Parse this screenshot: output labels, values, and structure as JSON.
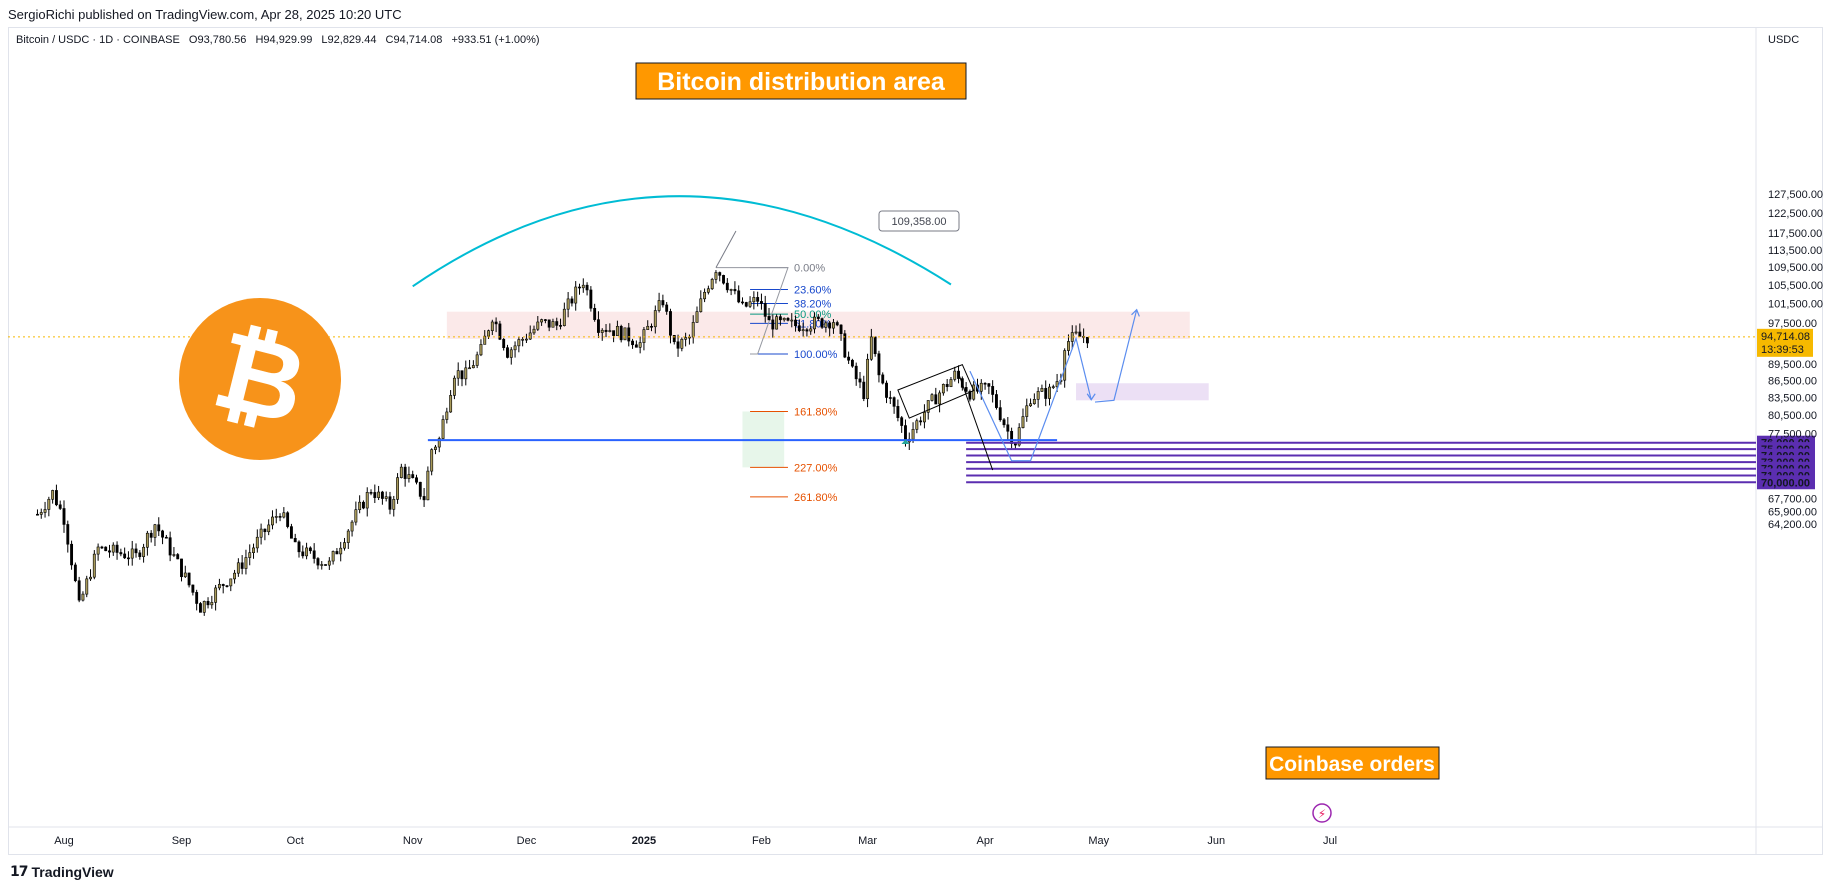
{
  "header": {
    "published": "SergioRichi published on TradingView.com, Apr 28, 2025 10:20 UTC"
  },
  "footer": {
    "brand": "TradingView"
  },
  "chart_data": {
    "type": "candlestick",
    "symbol": "Bitcoin / USDC · 1D · COINBASE",
    "ohlc_text": {
      "open": "O93,780.56",
      "high": "H94,929.99",
      "low": "L92,829.44",
      "close": "C94,714.08",
      "change": "+933.51 (+1.00%)"
    },
    "currency": "USDC",
    "last_price": "94,714.08",
    "last_price_value": 94714.08,
    "countdown": "13:39:53",
    "y_axis": {
      "ticks": [
        {
          "label": "127,500.00",
          "value": 127500
        },
        {
          "label": "122,500.00",
          "value": 122500
        },
        {
          "label": "117,500.00",
          "value": 117500
        },
        {
          "label": "113,500.00",
          "value": 113500
        },
        {
          "label": "109,500.00",
          "value": 109500
        },
        {
          "label": "105,500.00",
          "value": 105500
        },
        {
          "label": "101,500.00",
          "value": 101500
        },
        {
          "label": "97,500.00",
          "value": 97500
        },
        {
          "label": "89,500.00",
          "value": 89500
        },
        {
          "label": "86,500.00",
          "value": 86500
        },
        {
          "label": "83,500.00",
          "value": 83500
        },
        {
          "label": "80,500.00",
          "value": 80500
        },
        {
          "label": "77,500.00",
          "value": 77500
        },
        {
          "label": "67,700.00",
          "value": 67700
        },
        {
          "label": "65,900.00",
          "value": 65900
        },
        {
          "label": "64,200.00",
          "value": 64200
        }
      ],
      "scale": "log"
    },
    "x_axis": {
      "ticks": [
        {
          "label": "Aug",
          "date": "2024-08-01"
        },
        {
          "label": "Sep",
          "date": "2024-09-01"
        },
        {
          "label": "Oct",
          "date": "2024-10-01"
        },
        {
          "label": "Nov",
          "date": "2024-11-01"
        },
        {
          "label": "Dec",
          "date": "2024-12-01"
        },
        {
          "label": "2025",
          "date": "2025-01-01",
          "bold": true
        },
        {
          "label": "Feb",
          "date": "2025-02-01"
        },
        {
          "label": "Mar",
          "date": "2025-03-01"
        },
        {
          "label": "Apr",
          "date": "2025-04-01"
        },
        {
          "label": "May",
          "date": "2025-05-01"
        },
        {
          "label": "Jun",
          "date": "2025-06-01"
        },
        {
          "label": "Jul",
          "date": "2025-07-01"
        }
      ]
    },
    "price_path": [
      [
        "2024-07-25",
        65500
      ],
      [
        "2024-07-29",
        68500
      ],
      [
        "2024-08-01",
        65000
      ],
      [
        "2024-08-05",
        54000
      ],
      [
        "2024-08-10",
        61000
      ],
      [
        "2024-08-20",
        60000
      ],
      [
        "2024-08-25",
        64200
      ],
      [
        "2024-09-06",
        54000
      ],
      [
        "2024-09-16",
        58500
      ],
      [
        "2024-09-27",
        66000
      ],
      [
        "2024-10-01",
        61000
      ],
      [
        "2024-10-10",
        59000
      ],
      [
        "2024-10-21",
        69000
      ],
      [
        "2024-10-26",
        66500
      ],
      [
        "2024-10-29",
        72000
      ],
      [
        "2024-11-04",
        67800
      ],
      [
        "2024-11-06",
        75000
      ],
      [
        "2024-11-08",
        76500
      ],
      [
        "2024-11-12",
        88000
      ],
      [
        "2024-11-15",
        87500
      ],
      [
        "2024-11-19",
        92000
      ],
      [
        "2024-11-22",
        99000
      ],
      [
        "2024-11-26",
        91800
      ],
      [
        "2024-12-05",
        97500
      ],
      [
        "2024-12-09",
        97000
      ],
      [
        "2024-12-16",
        106500
      ],
      [
        "2024-12-20",
        97000
      ],
      [
        "2024-12-26",
        95500
      ],
      [
        "2024-12-31",
        93400
      ],
      [
        "2025-01-06",
        102200
      ],
      [
        "2025-01-09",
        92500
      ],
      [
        "2025-01-13",
        94500
      ],
      [
        "2025-01-17",
        104000
      ],
      [
        "2025-01-20",
        109358
      ],
      [
        "2025-01-24",
        104500
      ],
      [
        "2025-01-27",
        100500
      ],
      [
        "2025-01-31",
        102400
      ],
      [
        "2025-02-03",
        97500
      ],
      [
        "2025-02-10",
        97000
      ],
      [
        "2025-02-20",
        98000
      ],
      [
        "2025-02-25",
        88000
      ],
      [
        "2025-02-28",
        84300
      ],
      [
        "2025-03-02",
        94200
      ],
      [
        "2025-03-04",
        87300
      ],
      [
        "2025-03-10",
        78600
      ],
      [
        "2025-03-11",
        76600
      ],
      [
        "2025-03-18",
        82800
      ],
      [
        "2025-03-24",
        87500
      ],
      [
        "2025-03-28",
        84400
      ],
      [
        "2025-04-02",
        85000
      ],
      [
        "2025-04-07",
        77800
      ],
      [
        "2025-04-09",
        76200
      ],
      [
        "2025-04-13",
        83600
      ],
      [
        "2025-04-18",
        84500
      ],
      [
        "2025-04-21",
        87500
      ],
      [
        "2025-04-22",
        93400
      ],
      [
        "2025-04-25",
        94800
      ],
      [
        "2025-04-28",
        94714
      ]
    ],
    "annotations": {
      "title_box": "Bitcoin distribution area",
      "orders_box": "Coinbase orders",
      "ath_callout": {
        "label": "109,358.00",
        "value": 109358,
        "date": "2025-01-20"
      },
      "fib_levels": [
        {
          "label": "0.00%",
          "value": 109358,
          "color": "#787b86"
        },
        {
          "label": "23.60%",
          "value": 104500,
          "color": "#1848cc"
        },
        {
          "label": "38.20%",
          "value": 101500,
          "color": "#1848cc"
        },
        {
          "label": "50.00%",
          "value": 99300,
          "color": "#089981"
        },
        {
          "label": "61.80%",
          "value": 97400,
          "color": "#1848cc"
        },
        {
          "label": "100.00%",
          "value": 91400,
          "color": "#1848cc"
        },
        {
          "label": "161.80%",
          "value": 81100,
          "color": "#e65100"
        },
        {
          "label": "227.00%",
          "value": 72200,
          "color": "#e65100"
        },
        {
          "label": "261.80%",
          "value": 67900,
          "color": "#e65100"
        }
      ],
      "distribution_zone": {
        "from": "2024-11-10",
        "to": "2025-05-25",
        "top": 99800,
        "bottom": 94300
      },
      "support_line": {
        "value": 76400,
        "from": "2024-11-05",
        "to": "2025-04-20"
      },
      "target_zone": {
        "from": "2025-04-25",
        "to": "2025-05-30",
        "top": 86000,
        "bottom": 83000
      },
      "order_levels": [
        {
          "label": "76,000.00",
          "value": 76000
        },
        {
          "label": "75,000.00",
          "value": 75000
        },
        {
          "label": "74,000.00",
          "value": 74000
        },
        {
          "label": "73,000.00",
          "value": 73000
        },
        {
          "label": "72,000.00",
          "value": 72000
        },
        {
          "label": "71,000.00",
          "value": 71000
        },
        {
          "label": "70,000.00",
          "value": 70000
        }
      ]
    },
    "colors": {
      "up": "#a89a5a",
      "down": "#000000",
      "dome": "#00bcd4",
      "support": "#2962ff",
      "orders": "#5b2eb0",
      "zone": "#f8d7d7",
      "target": "#e6d6f2",
      "fib_ext_zone": "#d7f0dc",
      "last_price_bg": "#f6b900",
      "label_box": "#ff9800",
      "bitcoin_orange": "#f7931a"
    }
  }
}
